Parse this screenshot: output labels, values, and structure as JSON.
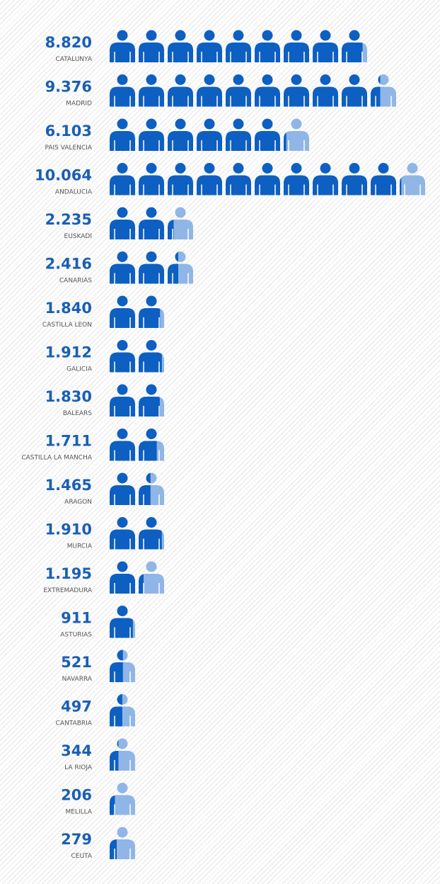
{
  "chart_data": {
    "type": "pictogram",
    "categories": [
      "CATALUNYA",
      "MADRID",
      "PAIS VALENCIA",
      "ANDALUCIA",
      "EUSKADI",
      "CANARIAS",
      "CASTILLA LEON",
      "GALICIA",
      "BALEARS",
      "CASTILLA LA MANCHA",
      "ARAGON",
      "MURCIA",
      "EXTREMADURA",
      "ASTURIAS",
      "NAVARRA",
      "CANTABRIA",
      "LA RIOJA",
      "MELILLA",
      "CEUTA"
    ],
    "values": [
      8820,
      9376,
      6103,
      10064,
      2235,
      2416,
      1840,
      1912,
      1830,
      1711,
      1465,
      1910,
      1195,
      911,
      521,
      497,
      344,
      206,
      279
    ],
    "value_labels": [
      "8.820",
      "9.376",
      "6.103",
      "10.064",
      "2.235",
      "2.416",
      "1.840",
      "1.912",
      "1.830",
      "1.711",
      "1.465",
      "1.910",
      "1.195",
      "911",
      "521",
      "497",
      "344",
      "206",
      "279"
    ],
    "color": "#0d5fc2",
    "secondary_color": "#8fb6e6"
  }
}
